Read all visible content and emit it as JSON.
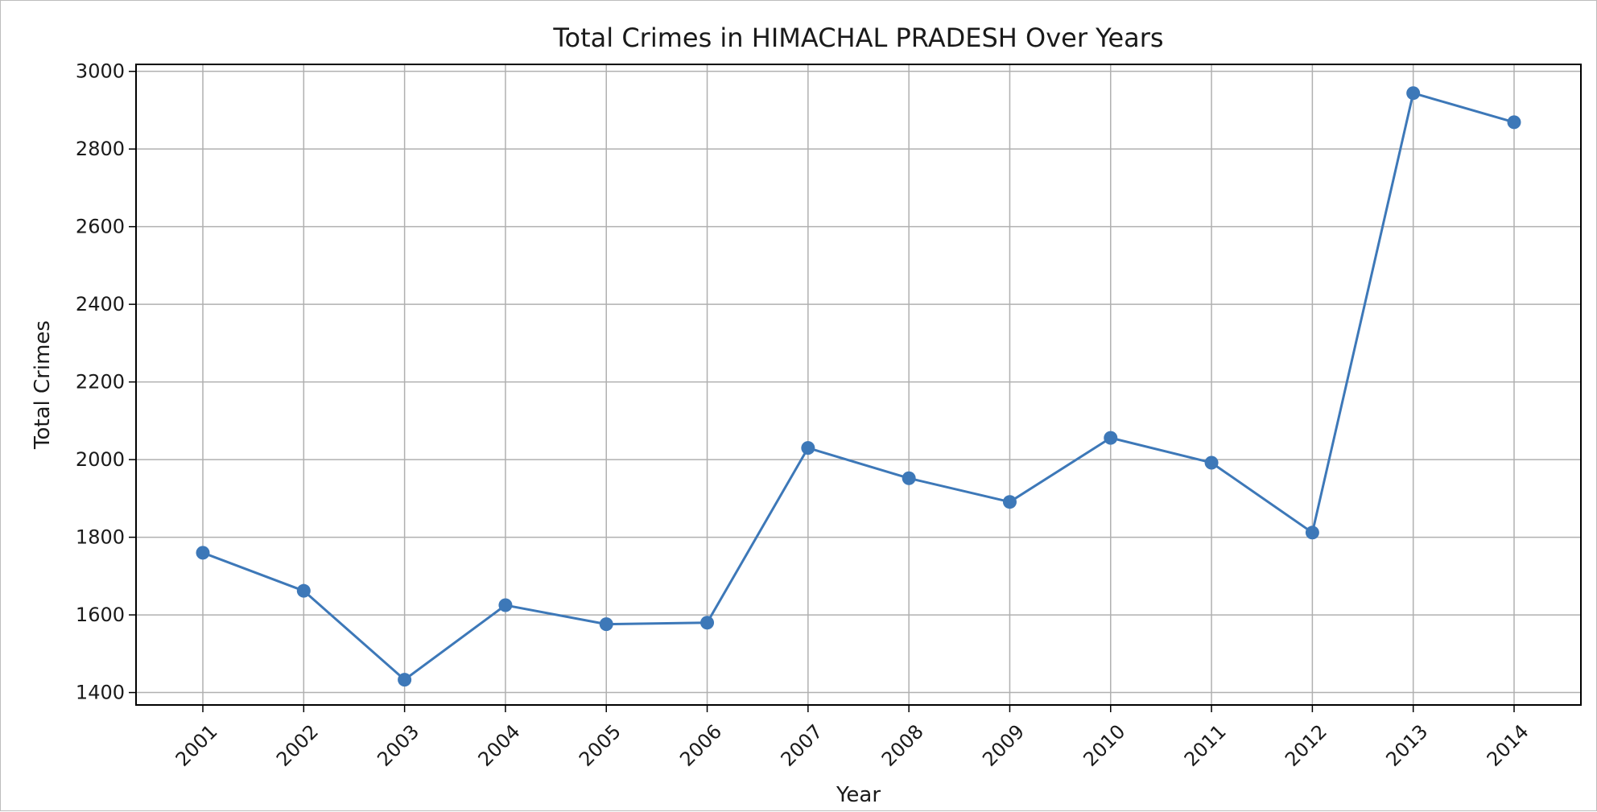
{
  "chart_data": {
    "type": "line",
    "title": "Total Crimes in HIMACHAL PRADESH Over Years",
    "xlabel": "Year",
    "ylabel": "Total Crimes",
    "categories": [
      "2001",
      "2002",
      "2003",
      "2004",
      "2005",
      "2006",
      "2007",
      "2008",
      "2009",
      "2010",
      "2011",
      "2012",
      "2013",
      "2014"
    ],
    "series": [
      {
        "values": [
          1760,
          1662,
          1433,
          1625,
          1576,
          1580,
          2030,
          1952,
          1891,
          2056,
          1992,
          1812,
          2944,
          2869
        ],
        "color": "#3d78b8",
        "marker": "circle"
      }
    ],
    "ylim": [
      1368,
      3018
    ],
    "yticks": [
      1400,
      1600,
      1800,
      2000,
      2200,
      2400,
      2600,
      2800,
      3000
    ],
    "grid": true,
    "x_tick_rotation": "45 degrees",
    "legend": "none"
  }
}
